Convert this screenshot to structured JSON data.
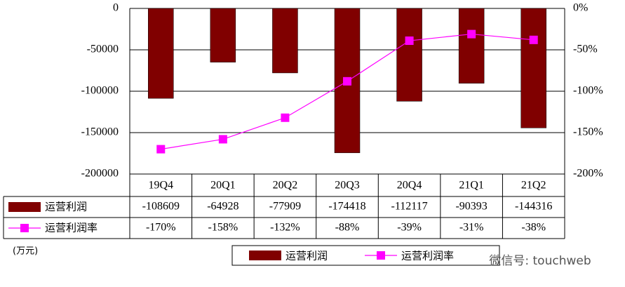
{
  "chart_data": {
    "type": "bar",
    "categories": [
      "19Q4",
      "20Q1",
      "20Q2",
      "20Q3",
      "20Q4",
      "21Q1",
      "21Q2"
    ],
    "series": [
      {
        "name": "运营利润",
        "type": "bar",
        "color": "#800000",
        "values": [
          -108609,
          -64928,
          -77909,
          -174418,
          -112117,
          -90393,
          -144316
        ]
      },
      {
        "name": "运营利润率",
        "type": "line",
        "axis": "y2",
        "color": "#ff00ff",
        "values": [
          -170,
          -158,
          -132,
          -88,
          -39,
          -31,
          -38
        ],
        "value_labels": [
          "-170%",
          "-158%",
          "-132%",
          "-88%",
          "-39%",
          "-31%",
          "-38%"
        ]
      }
    ],
    "ylim": [
      -200000,
      0
    ],
    "yticks": [
      0,
      -50000,
      -100000,
      -150000,
      -200000
    ],
    "y2lim": [
      -200,
      0
    ],
    "y2ticks": [
      {
        "value": 0,
        "label": "0%"
      },
      {
        "value": -50,
        "label": "-50%"
      },
      {
        "value": -100,
        "label": "-100%"
      },
      {
        "value": -150,
        "label": "-150%"
      },
      {
        "value": -200,
        "label": "-200%"
      }
    ],
    "grid": true,
    "unit_label": "(万元)",
    "watermark": "微信号: touchweb"
  }
}
